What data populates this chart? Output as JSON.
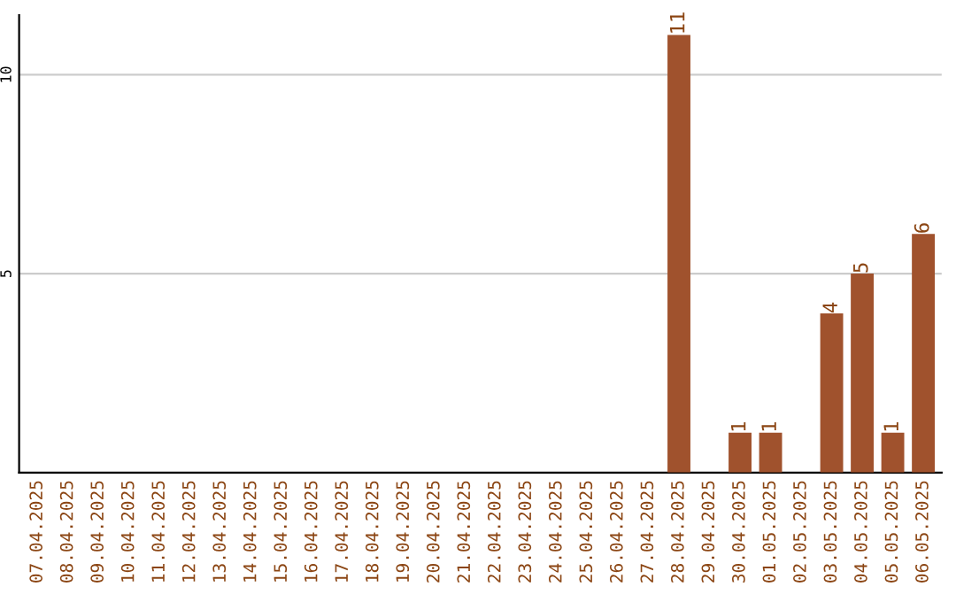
{
  "chart_data": {
    "type": "bar",
    "categories": [
      "07.04.2025",
      "08.04.2025",
      "09.04.2025",
      "10.04.2025",
      "11.04.2025",
      "12.04.2025",
      "13.04.2025",
      "14.04.2025",
      "15.04.2025",
      "16.04.2025",
      "17.04.2025",
      "18.04.2025",
      "19.04.2025",
      "20.04.2025",
      "21.04.2025",
      "22.04.2025",
      "23.04.2025",
      "24.04.2025",
      "25.04.2025",
      "26.04.2025",
      "27.04.2025",
      "28.04.2025",
      "29.04.2025",
      "30.04.2025",
      "01.05.2025",
      "02.05.2025",
      "03.05.2025",
      "04.05.2025",
      "05.05.2025",
      "06.05.2025"
    ],
    "values": [
      0,
      0,
      0,
      0,
      0,
      0,
      0,
      0,
      0,
      0,
      0,
      0,
      0,
      0,
      0,
      0,
      0,
      0,
      0,
      0,
      0,
      11,
      0,
      1,
      1,
      0,
      4,
      5,
      1,
      6
    ],
    "value_labels": [
      null,
      null,
      null,
      null,
      null,
      null,
      null,
      null,
      null,
      null,
      null,
      null,
      null,
      null,
      null,
      null,
      null,
      null,
      null,
      null,
      null,
      "11",
      null,
      "1",
      "1",
      null,
      "4",
      "5",
      "1",
      "6"
    ],
    "color": "#a0522d",
    "ylim": [
      0,
      11.5
    ],
    "yticks": [
      5,
      10
    ],
    "grid": "y",
    "legend": false
  }
}
